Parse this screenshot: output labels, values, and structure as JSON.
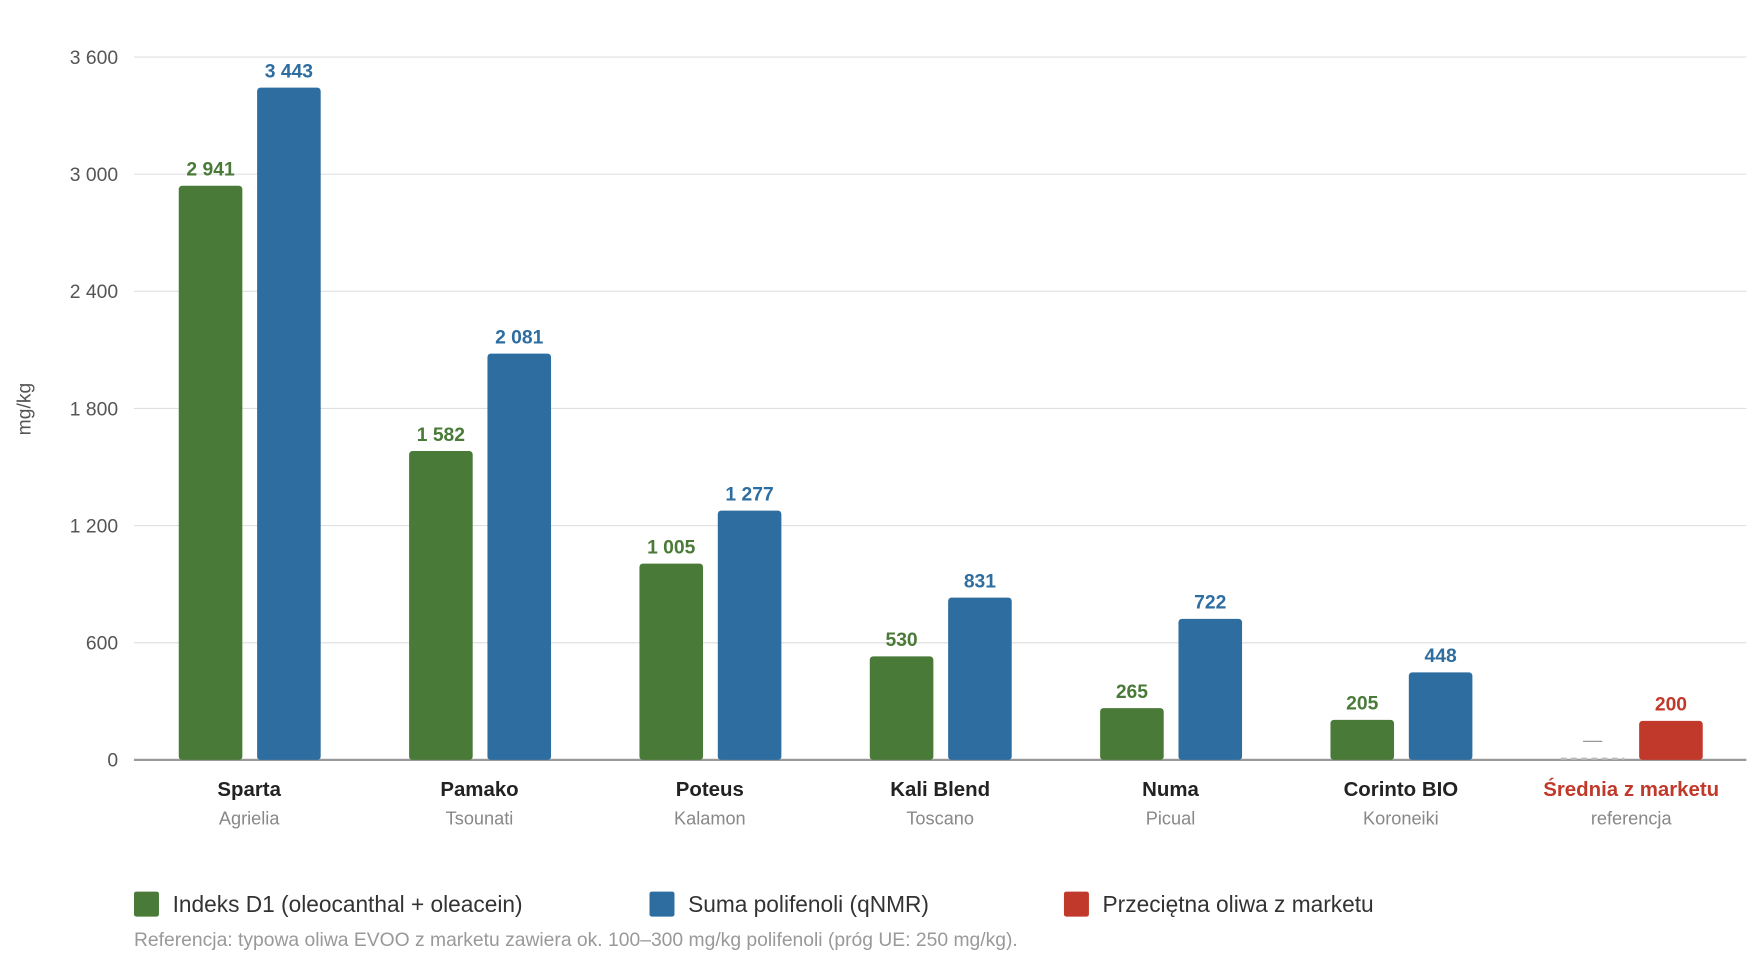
{
  "chart_data": {
    "type": "bar",
    "y_label": "mg/kg",
    "categories": [
      "Sparta",
      "Pamako",
      "Poteus",
      "Kali Blend",
      "Numa",
      "Corinto BIO",
      "Średnia z marketu"
    ],
    "subcategories": [
      "Agrielia",
      "Tsounati",
      "Kalamon",
      "Toscano",
      "Picual",
      "Koroneiki",
      "referencja"
    ],
    "series": [
      {
        "name": "Indeks D1 (oleocanthal + oleacein)",
        "color": "#4a7a38",
        "values": [
          2941,
          1582,
          1005,
          530,
          265,
          205,
          null
        ],
        "value_labels": [
          "2 941",
          "1 582",
          "1 005",
          "530",
          "265",
          "205",
          "—"
        ]
      },
      {
        "name": "Suma polifenoli (qNMR)",
        "color": "#2e6da0",
        "values": [
          3443,
          2081,
          1277,
          831,
          722,
          448,
          null
        ],
        "value_labels": [
          "3 443",
          "2 081",
          "1 277",
          "831",
          "722",
          "448",
          null
        ]
      },
      {
        "name": "Przeciętna oliwa z marketu",
        "color": "#c0392b",
        "values": [
          null,
          null,
          null,
          null,
          null,
          null,
          200
        ]
      }
    ],
    "ylim": [
      0,
      3600
    ],
    "yticks": [
      0,
      600,
      {
        "value": 1200,
        "label": "1 200"
      },
      {
        "value": 1800,
        "label": "1 800"
      },
      {
        "value": 2400,
        "label": "2 400"
      },
      {
        "value": 3000,
        "label": "3 000"
      },
      {
        "value": 3600,
        "label": "3 600"
      }
    ],
    "grid": true,
    "legend": "bottom-left",
    "footnote": "Referencja: typowa oliwa EVOO z marketu zawiera ok. 100–300 mg/kg polifenoli (próg UE: 250 mg/kg)."
  }
}
